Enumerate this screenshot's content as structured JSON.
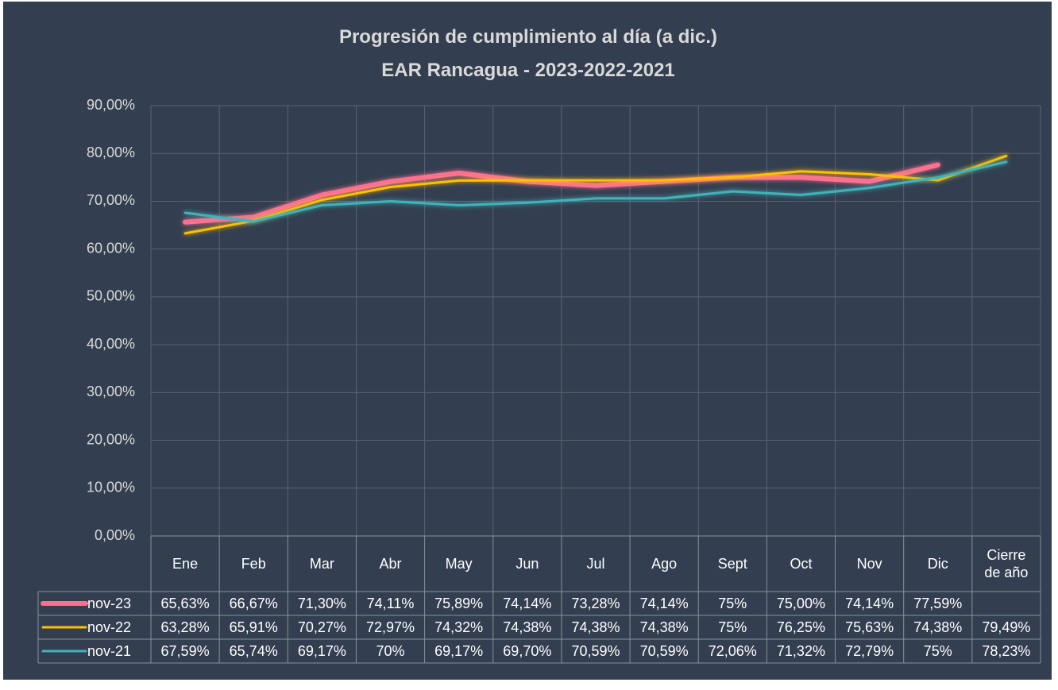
{
  "chart_data": {
    "type": "line",
    "title": "Progresión de cumplimiento al día  (a dic.)",
    "subtitle": "EAR Rancagua - 2023-2022-2021",
    "categories": [
      "Ene",
      "Feb",
      "Mar",
      "Abr",
      "May",
      "Jun",
      "Jul",
      "Ago",
      "Sept",
      "Oct",
      "Nov",
      "Dic",
      "Cierre de año"
    ],
    "series": [
      {
        "name": "nov-23",
        "color": "#ff6f91",
        "values": [
          65.63,
          66.67,
          71.3,
          74.11,
          75.89,
          74.14,
          73.28,
          74.14,
          75,
          75.0,
          74.14,
          77.59,
          null
        ],
        "value_labels": [
          "65,63%",
          "66,67%",
          "71,30%",
          "74,11%",
          "75,89%",
          "74,14%",
          "73,28%",
          "74,14%",
          "75%",
          "75,00%",
          "74,14%",
          "77,59%",
          null
        ]
      },
      {
        "name": "nov-22",
        "color": "#ffc000",
        "values": [
          63.28,
          65.91,
          70.27,
          72.97,
          74.32,
          74.38,
          74.38,
          74.38,
          75,
          76.25,
          75.63,
          74.38,
          79.49
        ],
        "value_labels": [
          "63,28%",
          "65,91%",
          "70,27%",
          "72,97%",
          "74,32%",
          "74,38%",
          "74,38%",
          "74,38%",
          "75%",
          "76,25%",
          "75,63%",
          "74,38%",
          "79,49%"
        ]
      },
      {
        "name": "nov-21",
        "color": "#3fb3ba",
        "values": [
          67.59,
          65.74,
          69.17,
          70,
          69.17,
          69.7,
          70.59,
          70.59,
          72.06,
          71.32,
          72.79,
          75,
          78.23
        ],
        "value_labels": [
          "67,59%",
          "65,74%",
          "69,17%",
          "70%",
          "69,17%",
          "69,70%",
          "70,59%",
          "70,59%",
          "72,06%",
          "71,32%",
          "72,79%",
          "75%",
          "78,23%"
        ]
      }
    ],
    "ylim": [
      0,
      90
    ],
    "yticks": [
      {
        "value": 0,
        "label": "0,00%"
      },
      {
        "value": 10,
        "label": "10,00%"
      },
      {
        "value": 20,
        "label": "20,00%"
      },
      {
        "value": 30,
        "label": "30,00%"
      },
      {
        "value": 40,
        "label": "40,00%"
      },
      {
        "value": 50,
        "label": "50,00%"
      },
      {
        "value": 60,
        "label": "60,00%"
      },
      {
        "value": 70,
        "label": "70,00%"
      },
      {
        "value": 80,
        "label": "80,00%"
      },
      {
        "value": 90,
        "label": "90,00%"
      }
    ],
    "grid": true
  }
}
